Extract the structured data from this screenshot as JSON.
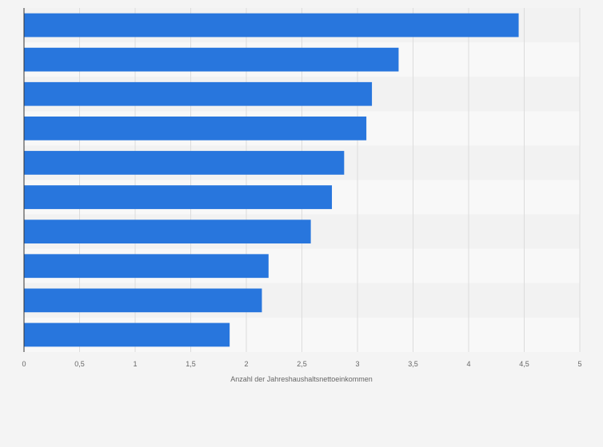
{
  "chart_data": {
    "type": "bar",
    "orientation": "horizontal",
    "categories": [
      "",
      "",
      "",
      "",
      "",
      "",
      "",
      "",
      "",
      ""
    ],
    "values": [
      4.45,
      3.37,
      3.13,
      3.08,
      2.88,
      2.77,
      2.58,
      2.2,
      2.14,
      1.85
    ],
    "xlabel": "Anzahl der Jahreshaushaltsnettoeinkommen",
    "ylabel": "",
    "xlim": [
      0,
      5
    ],
    "x_ticks": [
      0,
      0.5,
      1,
      1.5,
      2,
      2.5,
      3,
      3.5,
      4,
      4.5,
      5
    ],
    "x_tick_labels": [
      "0",
      "0,5",
      "1",
      "1,5",
      "2",
      "2,5",
      "3",
      "3,5",
      "4",
      "4,5",
      "5"
    ],
    "grid": true,
    "bar_color": "#2876dd",
    "band_colors": [
      "#f2f2f2",
      "#f8f8f8"
    ],
    "background_color": "#f4f4f4"
  }
}
